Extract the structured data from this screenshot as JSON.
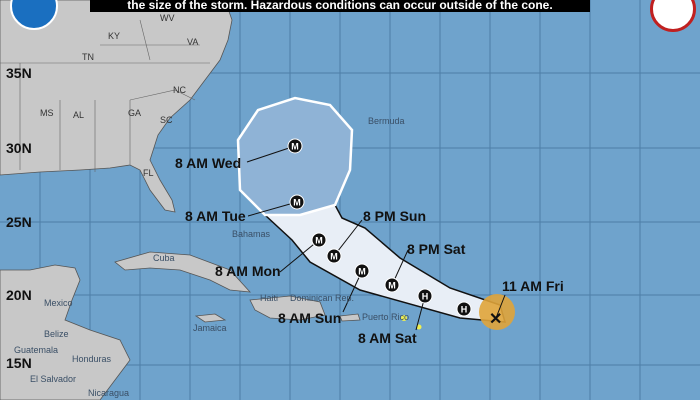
{
  "banner": {
    "text": "the size of the storm. Hazardous conditions can occur outside of the cone."
  },
  "latitudes": [
    "35N",
    "30N",
    "25N",
    "20N",
    "15N"
  ],
  "states": [
    "WV",
    "KY",
    "VA",
    "TN",
    "NC",
    "SC",
    "MS",
    "AL",
    "GA",
    "FL"
  ],
  "places": [
    "Bermuda",
    "Cuba",
    "Mexico",
    "Bahamas",
    "Jamaica",
    "Haiti",
    "Dominican Rep.",
    "Puerto Rico",
    "Belize",
    "Guatemala",
    "Honduras",
    "El Salvador",
    "Nicaragua"
  ],
  "track": {
    "current": {
      "label": "11 AM Fri",
      "icon": "x-storm-center"
    },
    "points": [
      {
        "symbol": "H"
      },
      {
        "symbol": "H"
      },
      {
        "symbol": "M"
      },
      {
        "symbol": "M"
      },
      {
        "symbol": "M"
      },
      {
        "symbol": "M"
      },
      {
        "symbol": "M"
      },
      {
        "symbol": "M"
      }
    ],
    "labels": [
      "8 AM Sat",
      "8 PM Sat",
      "8 AM Sun",
      "8 PM Sun",
      "8 AM Mon",
      "8 AM Tue",
      "8 AM Wed"
    ]
  },
  "colors": {
    "ocean": "#6fa3cc",
    "land": "#c8c8c8",
    "cone": "#ffffff",
    "current_wind": "#e0a43a",
    "warning": "#f0f050"
  }
}
